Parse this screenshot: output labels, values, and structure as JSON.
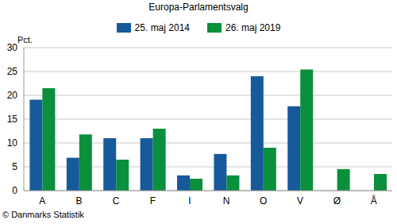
{
  "chart_data": {
    "type": "bar",
    "title": "Europa-Parlamentsvalg",
    "y_label": "Pct.",
    "source": "© Danmarks Statistik",
    "categories": [
      "A",
      "B",
      "C",
      "F",
      "I",
      "N",
      "O",
      "V",
      "Ø",
      "Å"
    ],
    "series": [
      {
        "name": "25. maj 2014",
        "color": "#175a9b",
        "values": [
          19.1,
          6.9,
          11.0,
          11.0,
          3.2,
          7.7,
          24.0,
          17.7,
          null,
          null
        ]
      },
      {
        "name": "26. maj 2019",
        "color": "#0a8f3c",
        "values": [
          21.5,
          11.8,
          6.5,
          13.0,
          2.5,
          3.2,
          9.0,
          25.4,
          4.5,
          3.5
        ]
      }
    ],
    "ylim": [
      0,
      30
    ],
    "yticks": [
      0,
      5,
      10,
      15,
      20,
      25,
      30
    ],
    "grid": true,
    "legend": "top"
  }
}
